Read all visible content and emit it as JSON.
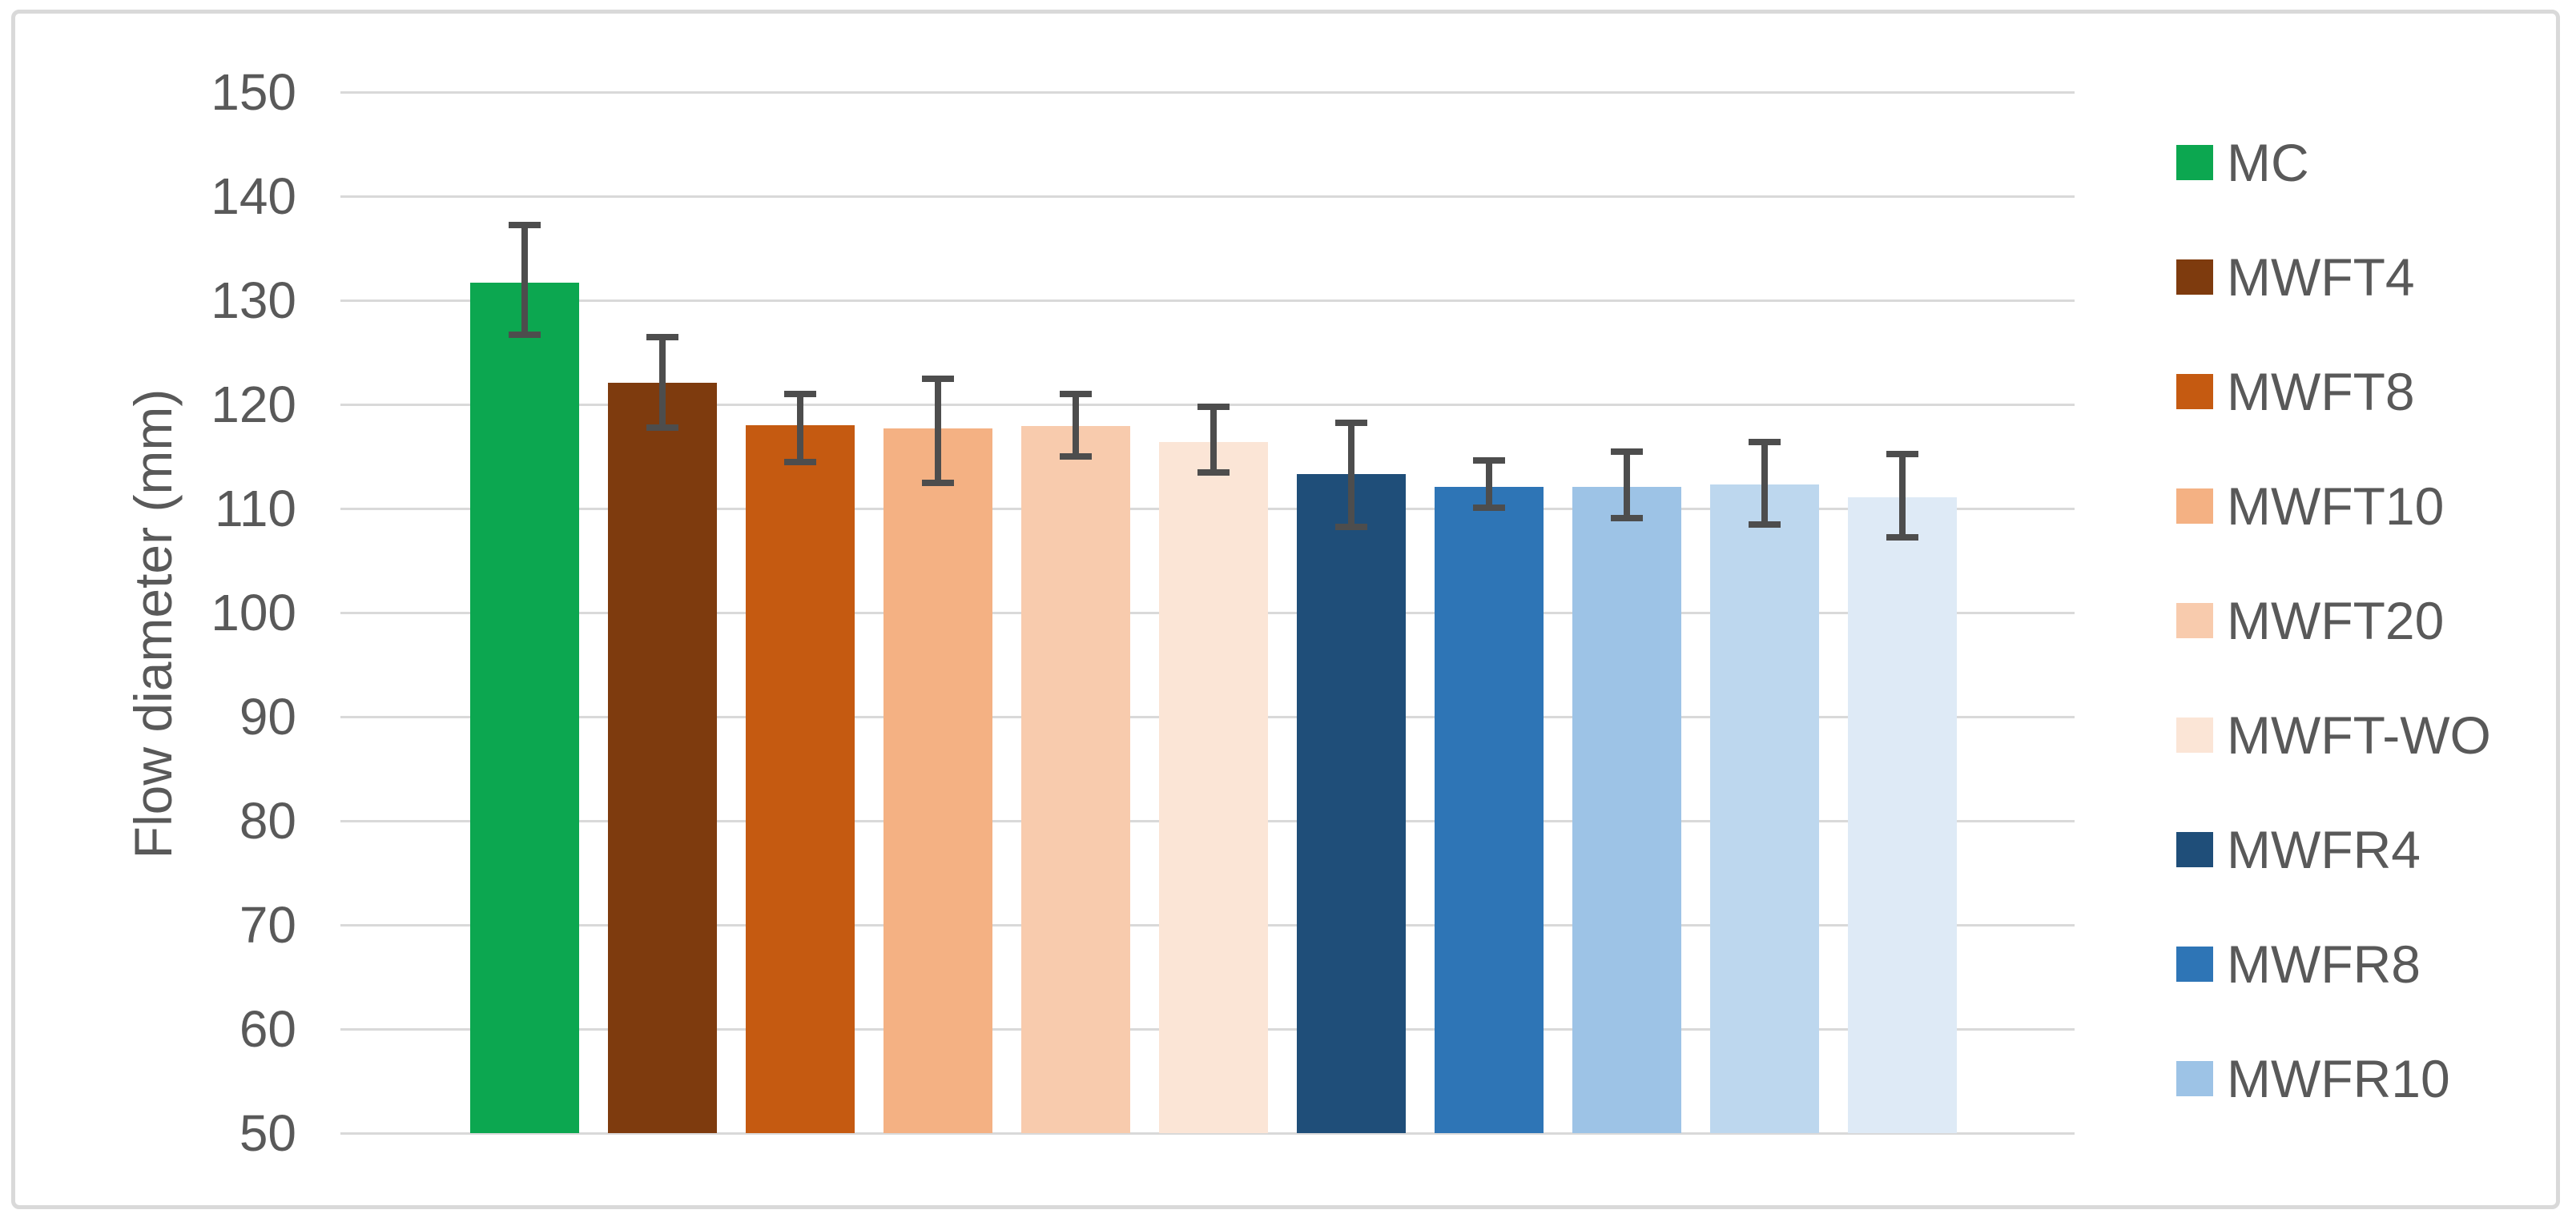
{
  "chart_data": {
    "type": "bar",
    "title": "",
    "xlabel": "",
    "ylabel": "Flow diameter (mm)",
    "ylim": [
      50,
      150
    ],
    "yticks": [
      150,
      140,
      130,
      120,
      110,
      100,
      90,
      80,
      70,
      60,
      50
    ],
    "grid": true,
    "legend_position": "right",
    "error_bars": true,
    "colors": {
      "gridline": "#d9d9d9",
      "axis_text": "#595959",
      "error_bar": "#4d4d4d",
      "frame_border": "#d9d9d9",
      "background": "#ffffff"
    },
    "series": [
      {
        "name": "MC",
        "color": "#0ca750",
        "value": 131.7,
        "err_plus": 5.5,
        "err_minus": 5.0,
        "in_legend": true
      },
      {
        "name": "MWFT4",
        "color": "#7e3b0e",
        "value": 122.1,
        "err_plus": 4.4,
        "err_minus": 4.3,
        "in_legend": true
      },
      {
        "name": "MWFT8",
        "color": "#c55a11",
        "value": 118.0,
        "err_plus": 3.0,
        "err_minus": 3.5,
        "in_legend": true
      },
      {
        "name": "MWFT10",
        "color": "#f4b183",
        "value": 117.7,
        "err_plus": 4.8,
        "err_minus": 5.2,
        "in_legend": true
      },
      {
        "name": "MWFT20",
        "color": "#f8cbad",
        "value": 117.9,
        "err_plus": 3.1,
        "err_minus": 2.9,
        "in_legend": true
      },
      {
        "name": "MWFT-WO",
        "color": "#fbe5d6",
        "value": 116.4,
        "err_plus": 3.4,
        "err_minus": 2.9,
        "in_legend": true
      },
      {
        "name": "MWFR4",
        "color": "#1f4e79",
        "value": 113.3,
        "err_plus": 4.9,
        "err_minus": 5.1,
        "in_legend": true
      },
      {
        "name": "MWFR8",
        "color": "#2e75b6",
        "value": 112.1,
        "err_plus": 2.5,
        "err_minus": 2.0,
        "in_legend": true
      },
      {
        "name": "MWFR10",
        "color": "#9dc3e6",
        "value": 112.1,
        "err_plus": 3.4,
        "err_minus": 3.0,
        "in_legend": true
      },
      {
        "name": "",
        "color": "#bdd7ee",
        "value": 112.3,
        "err_plus": 4.1,
        "err_minus": 3.8,
        "in_legend": false
      },
      {
        "name": "",
        "color": "#deeaf6",
        "value": 111.1,
        "err_plus": 4.1,
        "err_minus": 3.9,
        "in_legend": false
      }
    ]
  }
}
